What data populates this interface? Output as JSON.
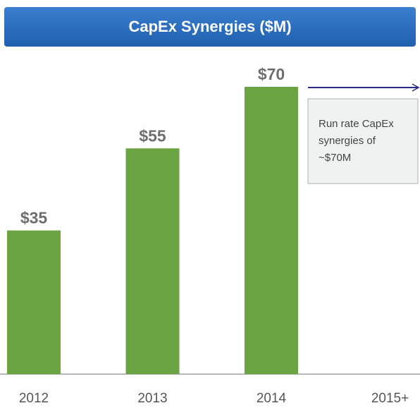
{
  "chart_data": {
    "type": "bar",
    "title": "CapEx Synergies ($M)",
    "categories": [
      "2012",
      "2013",
      "2014",
      "2015+"
    ],
    "values": [
      35,
      55,
      70,
      null
    ],
    "value_labels": [
      "$35",
      "$55",
      "$70",
      null
    ],
    "color": "#6aa443",
    "annotation": [
      "Run rate CapEx",
      "synergies of",
      "~$70M"
    ]
  }
}
